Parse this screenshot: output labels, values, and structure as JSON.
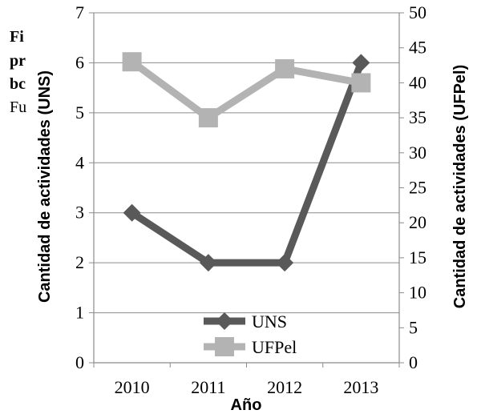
{
  "background_text": {
    "line1": "Fi",
    "line2": "pr",
    "line3": "bc",
    "line4": "Fu"
  },
  "chart_data": {
    "type": "line",
    "categories": [
      "2010",
      "2011",
      "2012",
      "2013"
    ],
    "xlabel": "Año",
    "ylabel_left": "Cantidad de actividades (UNS)",
    "ylabel_right": "Cantidad de actividades (UFPel)",
    "y_left": {
      "min": 0,
      "max": 7,
      "ticks": [
        0,
        1,
        2,
        3,
        4,
        5,
        6,
        7
      ]
    },
    "y_right": {
      "min": 0,
      "max": 50,
      "ticks": [
        0,
        5,
        10,
        15,
        20,
        25,
        30,
        35,
        40,
        45,
        50
      ]
    },
    "grid": true,
    "legend_position": "bottom-center",
    "series": [
      {
        "name": "UNS",
        "axis": "left",
        "color": "#595959",
        "marker": "diamond",
        "values": [
          3,
          2,
          2,
          6
        ]
      },
      {
        "name": "UFPel",
        "axis": "right",
        "color": "#b3b3b3",
        "marker": "square",
        "values": [
          43,
          35,
          42,
          40
        ]
      }
    ]
  }
}
